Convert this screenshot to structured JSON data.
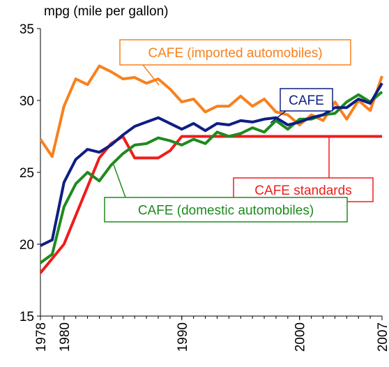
{
  "chart_data": {
    "type": "line",
    "y_label": "mpg (mile per gallon)",
    "x": [
      1978,
      1979,
      1980,
      1981,
      1982,
      1983,
      1984,
      1985,
      1986,
      1987,
      1988,
      1989,
      1990,
      1991,
      1992,
      1993,
      1994,
      1995,
      1996,
      1997,
      1998,
      1999,
      2000,
      2001,
      2002,
      2003,
      2004,
      2005,
      2006,
      2007
    ],
    "xlim": [
      1978,
      2007
    ],
    "xticks": [
      1978,
      1980,
      1990,
      2000,
      2007
    ],
    "ylim": [
      15,
      35
    ],
    "yticks": [
      15,
      20,
      25,
      30,
      35
    ],
    "grid": false,
    "series": [
      {
        "name": "CAFE (imported automobiles)",
        "color": "#f7811e",
        "values": [
          27.3,
          26.1,
          29.6,
          31.5,
          31.1,
          32.4,
          32.0,
          31.5,
          31.6,
          31.2,
          31.5,
          30.8,
          29.9,
          30.1,
          29.2,
          29.6,
          29.6,
          30.3,
          29.6,
          30.1,
          29.2,
          29.0,
          28.3,
          29.0,
          28.6,
          29.9,
          28.7,
          30.0,
          29.3,
          31.7
        ]
      },
      {
        "name": "CAFE",
        "color": "#0f1e84",
        "values": [
          19.9,
          20.3,
          24.3,
          25.9,
          26.6,
          26.4,
          26.9,
          27.6,
          28.2,
          28.5,
          28.8,
          28.4,
          28.0,
          28.4,
          27.9,
          28.4,
          28.3,
          28.6,
          28.5,
          28.7,
          28.8,
          28.3,
          28.5,
          28.8,
          29.0,
          29.5,
          29.5,
          30.1,
          29.8,
          31.2
        ]
      },
      {
        "name": "CAFE standards",
        "color": "#f01c1c",
        "values": [
          18.0,
          19.0,
          20.0,
          22.0,
          24.0,
          26.0,
          27.0,
          27.5,
          26.0,
          26.0,
          26.0,
          26.5,
          27.5,
          27.5,
          27.5,
          27.5,
          27.5,
          27.5,
          27.5,
          27.5,
          27.5,
          27.5,
          27.5,
          27.5,
          27.5,
          27.5,
          27.5,
          27.5,
          27.5,
          27.5
        ]
      },
      {
        "name": "CAFE (domestic automobiles)",
        "color": "#1e8a1e",
        "values": [
          18.7,
          19.3,
          22.6,
          24.2,
          25.0,
          24.4,
          25.5,
          26.3,
          26.9,
          27.0,
          27.4,
          27.2,
          26.9,
          27.3,
          27.0,
          27.8,
          27.5,
          27.7,
          28.1,
          27.8,
          28.6,
          28.0,
          28.7,
          28.7,
          29.0,
          29.1,
          29.9,
          30.4,
          29.9,
          30.6
        ]
      }
    ]
  }
}
